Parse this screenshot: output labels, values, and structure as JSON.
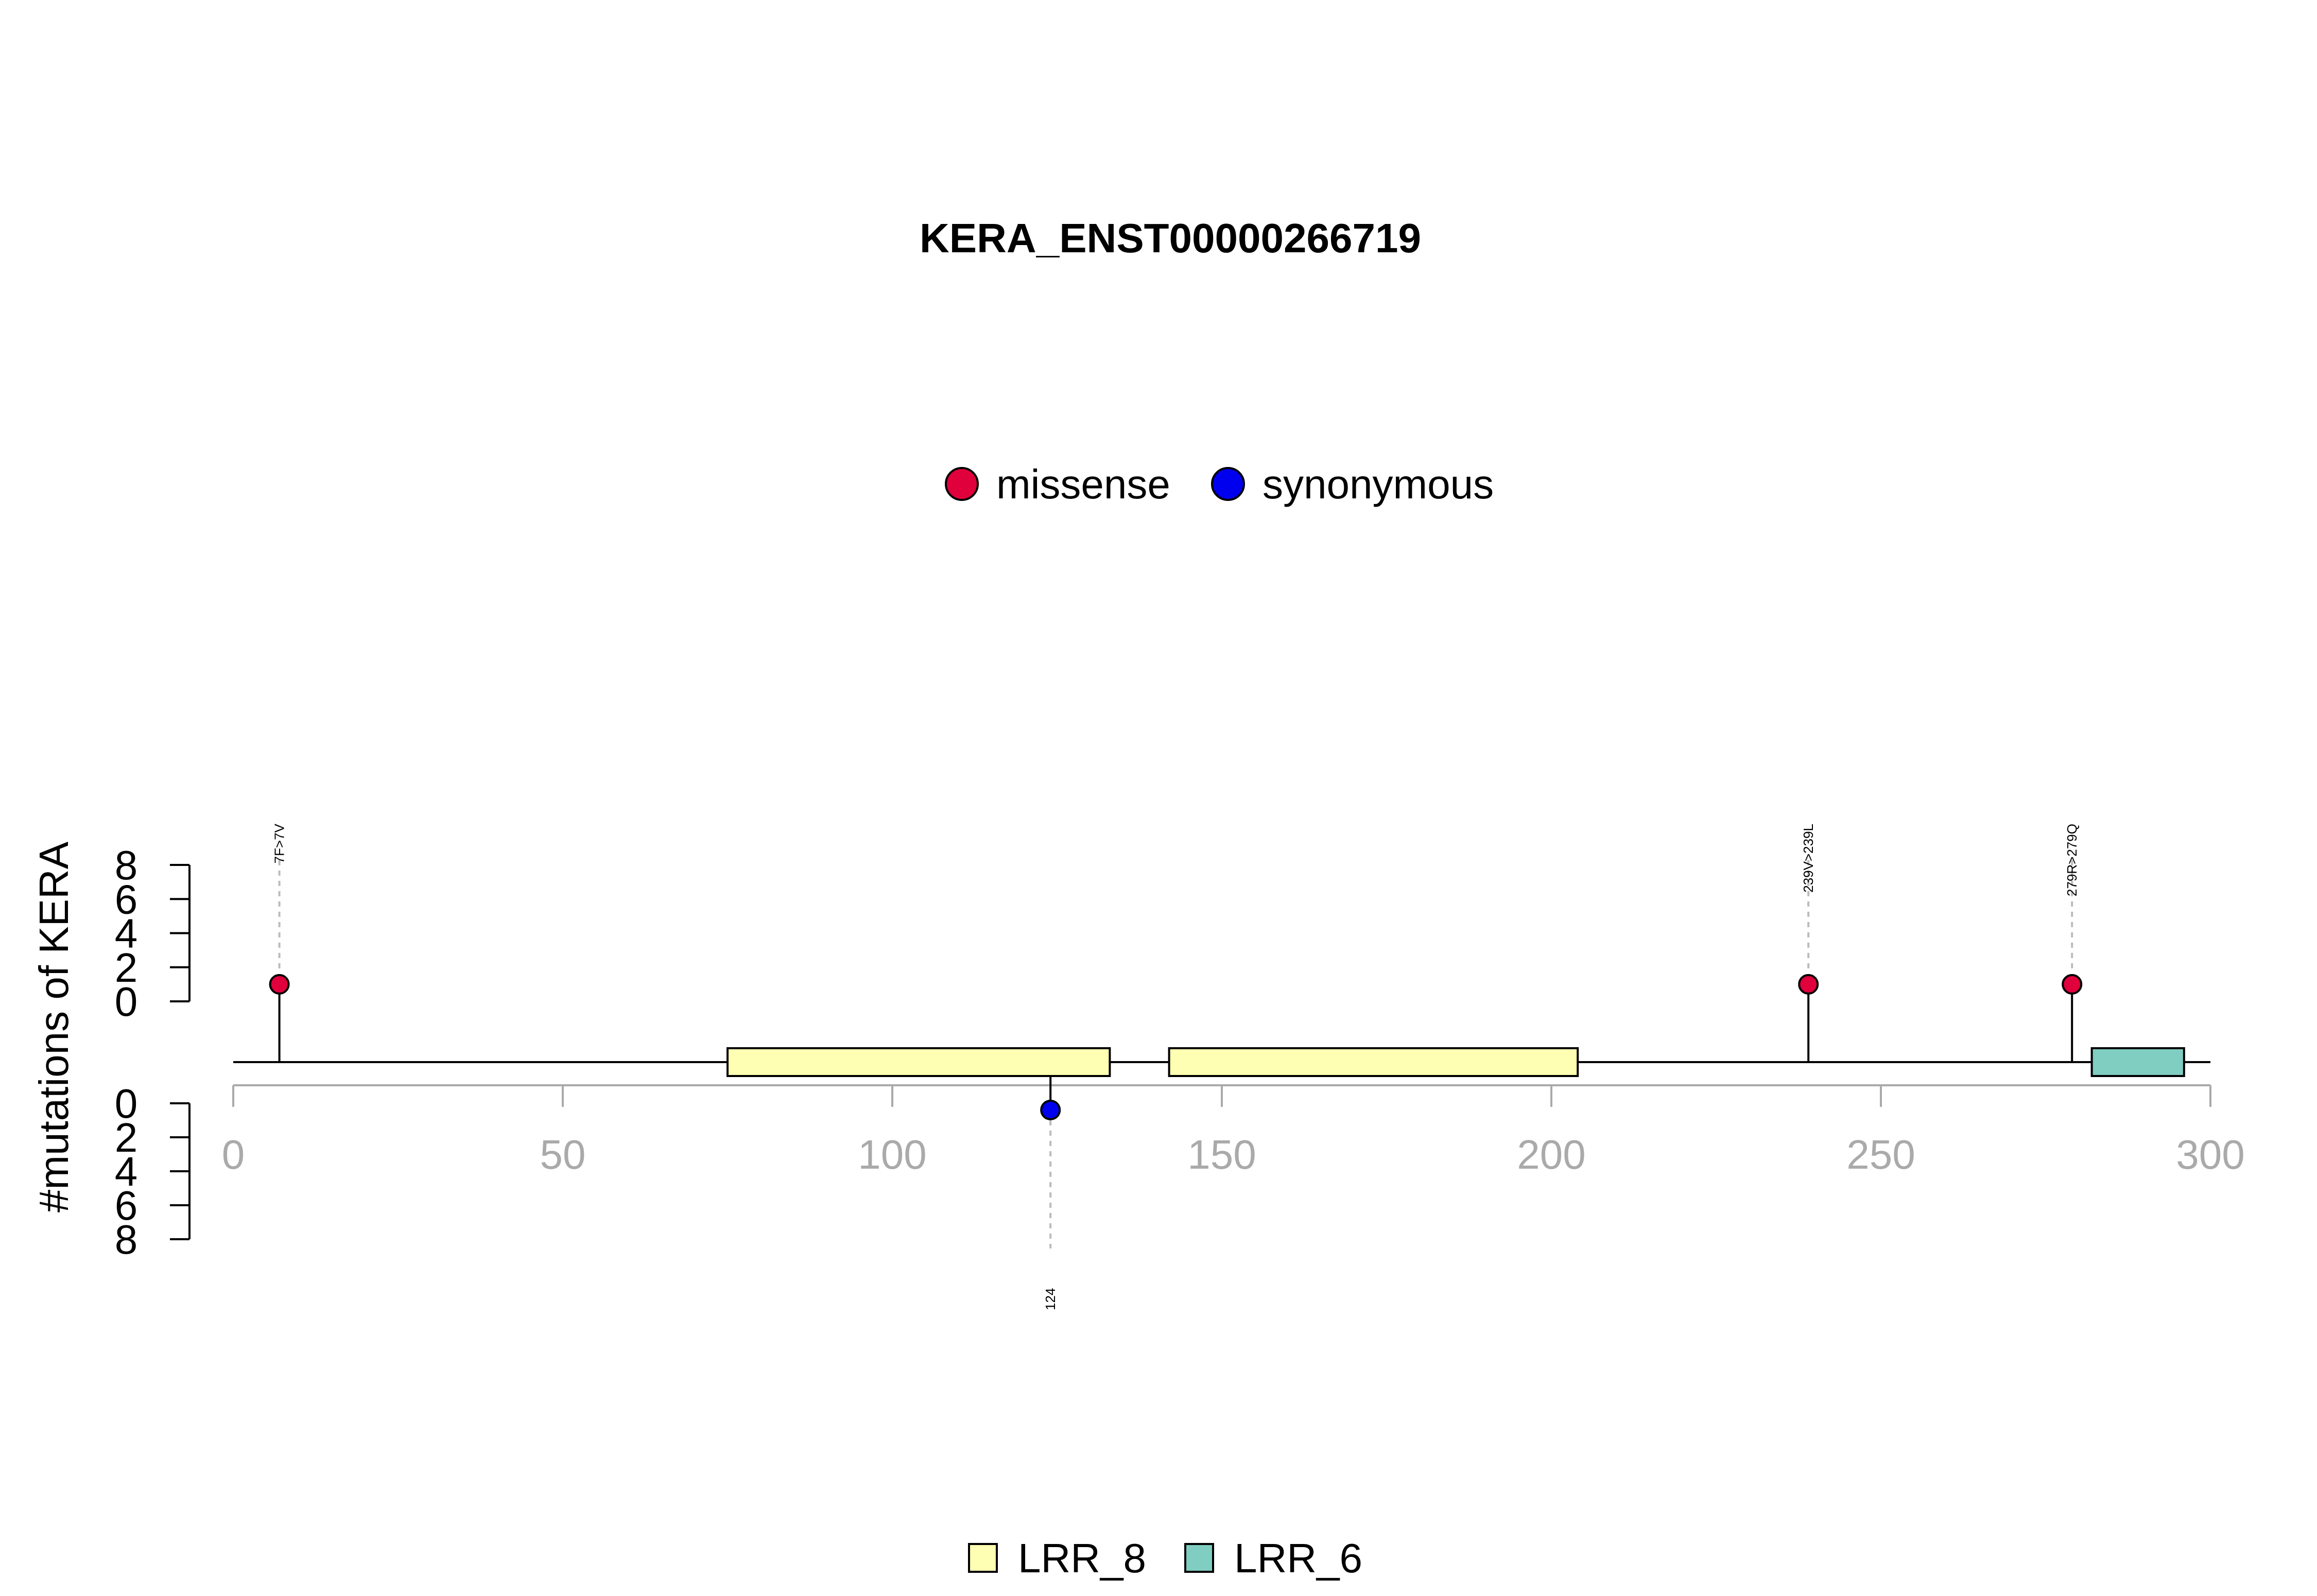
{
  "chart_data": {
    "type": "lollipop",
    "title": "KERA_ENST00000266719",
    "ylabel": "#mutations of KERA",
    "xlim": [
      0,
      300
    ],
    "x_ticks": [
      0,
      50,
      100,
      150,
      200,
      250,
      300
    ],
    "y_ticks": [
      0,
      2,
      4,
      6,
      8
    ],
    "ylim": [
      0,
      8
    ],
    "grid": false,
    "mutation_legend": [
      {
        "name": "missense",
        "color": "#e0003c"
      },
      {
        "name": "synonymous",
        "color": "#0000ee"
      }
    ],
    "mutations": [
      {
        "position": 7,
        "count": 1,
        "type": "missense",
        "label": "7F>7V",
        "side": "top"
      },
      {
        "position": 124,
        "count": 1,
        "type": "synonymous",
        "label": "124",
        "side": "bottom"
      },
      {
        "position": 239,
        "count": 1,
        "type": "missense",
        "label": "239V>239L",
        "side": "top"
      },
      {
        "position": 279,
        "count": 1,
        "type": "missense",
        "label": "279R>279Q",
        "side": "top"
      }
    ],
    "domain_legend": [
      {
        "name": "LRR_8",
        "color": "#ffffb3"
      },
      {
        "name": "LRR_6",
        "color": "#80cdc1"
      }
    ],
    "domains": [
      {
        "name": "LRR_8",
        "start": 75,
        "end": 133
      },
      {
        "name": "LRR_8",
        "start": 142,
        "end": 204
      },
      {
        "name": "LRR_6",
        "start": 282,
        "end": 296
      }
    ]
  }
}
